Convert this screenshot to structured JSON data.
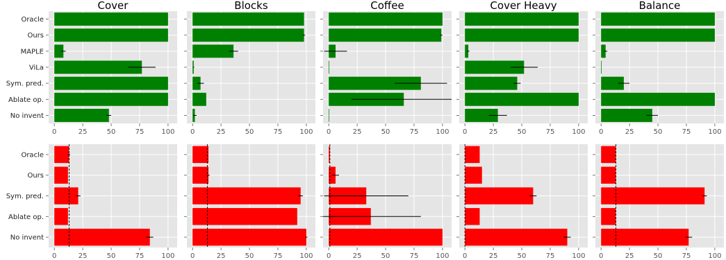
{
  "colors": {
    "background": "#e5e5e5",
    "grid": "#ffffff",
    "top_bar": "#008000",
    "bottom_bar": "#ff0000",
    "error": "#000000"
  },
  "chart_data": [
    {
      "type": "bar",
      "orientation": "horizontal",
      "row": 0,
      "col": 0,
      "title": "Cover",
      "categories": [
        "Oracle",
        "Ours",
        "MAPLE",
        "ViLa",
        "Sym. pred.",
        "Ablate op.",
        "No invent"
      ],
      "values": [
        100,
        100,
        8,
        77,
        100,
        100,
        48
      ],
      "errors": [
        0,
        0,
        2,
        12,
        0,
        0,
        2
      ],
      "xlim": [
        -5,
        108
      ],
      "xticks": [
        0,
        25,
        50,
        75,
        100
      ],
      "grid": true
    },
    {
      "type": "bar",
      "orientation": "horizontal",
      "row": 0,
      "col": 1,
      "title": "Blocks",
      "categories": [
        "Oracle",
        "Ours",
        "MAPLE",
        "ViLa",
        "Sym. pred.",
        "Ablate op.",
        "No invent"
      ],
      "values": [
        98,
        98,
        36,
        1,
        7,
        12,
        2
      ],
      "errors": [
        0,
        1,
        4,
        0.5,
        3,
        0,
        1.5
      ],
      "xlim": [
        -5,
        108
      ],
      "xticks": [
        0,
        25,
        50,
        75,
        100
      ],
      "grid": true
    },
    {
      "type": "bar",
      "orientation": "horizontal",
      "row": 0,
      "col": 2,
      "title": "Coffee",
      "categories": [
        "Oracle",
        "Ours",
        "MAPLE",
        "ViLa",
        "Sym. pred.",
        "Ablate op.",
        "No invent"
      ],
      "values": [
        100,
        99,
        6,
        0.5,
        81,
        66,
        0
      ],
      "errors": [
        0,
        1,
        10,
        0,
        23,
        46,
        0
      ],
      "xlim": [
        -5,
        108
      ],
      "xticks": [
        0,
        25,
        50,
        75,
        100
      ],
      "grid": true
    },
    {
      "type": "bar",
      "orientation": "horizontal",
      "row": 0,
      "col": 3,
      "title": "Cover Heavy",
      "categories": [
        "Oracle",
        "Ours",
        "MAPLE",
        "ViLa",
        "Sym. pred.",
        "Ablate op.",
        "No invent"
      ],
      "values": [
        100,
        100,
        3,
        52,
        46,
        100,
        29
      ],
      "errors": [
        0,
        0,
        1,
        12,
        3,
        0,
        8
      ],
      "xlim": [
        -5,
        108
      ],
      "xticks": [
        0,
        25,
        50,
        75,
        100
      ],
      "grid": true
    },
    {
      "type": "bar",
      "orientation": "horizontal",
      "row": 0,
      "col": 4,
      "title": "Balance",
      "categories": [
        "Oracle",
        "Ours",
        "MAPLE",
        "ViLa",
        "Sym. pred.",
        "Ablate op.",
        "No invent"
      ],
      "values": [
        100,
        100,
        4,
        0,
        20,
        100,
        45
      ],
      "errors": [
        0,
        0,
        1.5,
        0,
        5,
        0,
        5
      ],
      "xlim": [
        -5,
        108
      ],
      "xticks": [
        0,
        25,
        50,
        75,
        100
      ],
      "grid": true
    },
    {
      "type": "bar",
      "orientation": "horizontal",
      "row": 1,
      "col": 0,
      "title": "",
      "categories": [
        "Oracle",
        "Ours",
        "Sym. pred.",
        "Ablate op.",
        "No invent"
      ],
      "values": [
        13,
        12,
        21,
        12,
        84
      ],
      "errors": [
        1,
        0,
        2,
        0,
        3
      ],
      "reference_line": 13,
      "xlim": [
        -5,
        108
      ],
      "xticks": [
        0,
        25,
        50,
        75,
        100
      ],
      "grid": true
    },
    {
      "type": "bar",
      "orientation": "horizontal",
      "row": 1,
      "col": 1,
      "title": "",
      "categories": [
        "Oracle",
        "Ours",
        "Sym. pred.",
        "Ablate op.",
        "No invent"
      ],
      "values": [
        14,
        14,
        95,
        92,
        100
      ],
      "errors": [
        0,
        1,
        2,
        0,
        1
      ],
      "reference_line": 13,
      "xlim": [
        -5,
        108
      ],
      "xticks": [
        0,
        25,
        50,
        75,
        100
      ],
      "grid": true
    },
    {
      "type": "bar",
      "orientation": "horizontal",
      "row": 1,
      "col": 2,
      "title": "",
      "categories": [
        "Oracle",
        "Ours",
        "Sym. pred.",
        "Ablate op.",
        "No invent"
      ],
      "values": [
        1,
        6,
        33,
        37,
        100
      ],
      "errors": [
        0,
        3,
        37,
        44,
        0
      ],
      "reference_line": 1,
      "xlim": [
        -5,
        108
      ],
      "xticks": [
        0,
        25,
        50,
        75,
        100
      ],
      "grid": true
    },
    {
      "type": "bar",
      "orientation": "horizontal",
      "row": 1,
      "col": 3,
      "title": "",
      "categories": [
        "Oracle",
        "Ours",
        "Sym. pred.",
        "Ablate op.",
        "No invent"
      ],
      "values": [
        13,
        15,
        60,
        13,
        90
      ],
      "errors": [
        0,
        0,
        3,
        0,
        3
      ],
      "reference_line": 0,
      "xlim": [
        -5,
        108
      ],
      "xticks": [
        0,
        25,
        50,
        75,
        100
      ],
      "grid": true
    },
    {
      "type": "bar",
      "orientation": "horizontal",
      "row": 1,
      "col": 4,
      "title": "",
      "categories": [
        "Oracle",
        "Ours",
        "Sym. pred.",
        "Ablate op.",
        "No invent"
      ],
      "values": [
        13,
        13,
        91,
        13,
        77
      ],
      "errors": [
        0,
        0,
        2,
        0,
        3
      ],
      "reference_line": 13,
      "xlim": [
        -5,
        108
      ],
      "xticks": [
        0,
        25,
        50,
        75,
        100
      ],
      "grid": true
    }
  ]
}
